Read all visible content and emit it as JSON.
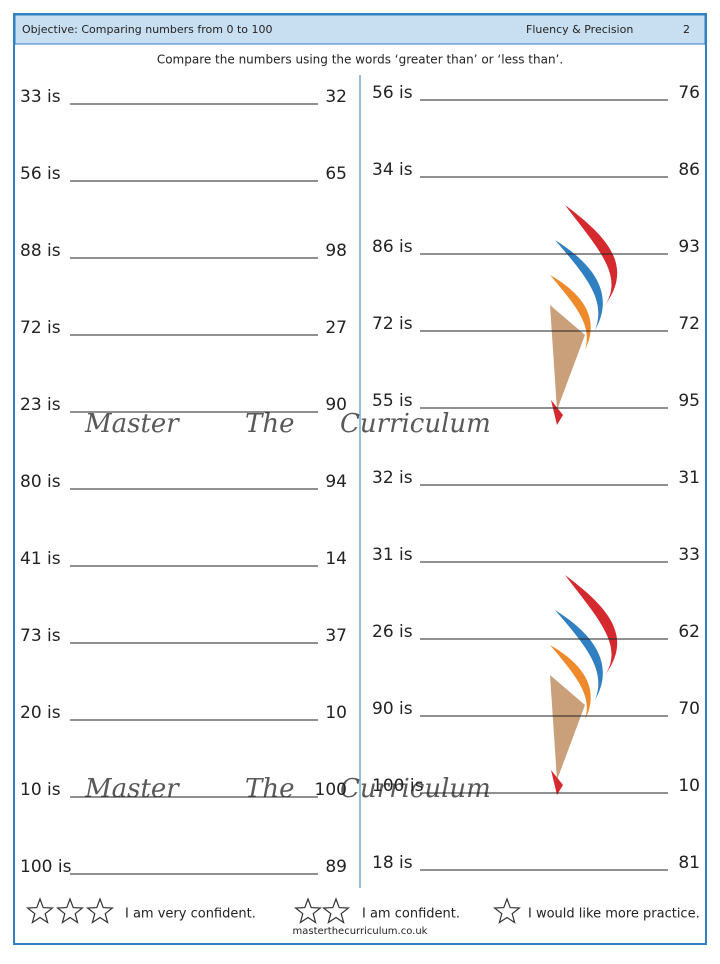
{
  "header": {
    "objective": "Objective: Comparing numbers from 0 to 100",
    "section": "Fluency & Precision",
    "page": "2"
  },
  "instruction": "Compare the numbers using the words ‘greater than’ or ‘less than’.",
  "left_column": [
    {
      "left": "33 is",
      "right": "32"
    },
    {
      "left": "56 is",
      "right": "65"
    },
    {
      "left": "88 is",
      "right": "98"
    },
    {
      "left": "72 is",
      "right": "27"
    },
    {
      "left": "23 is",
      "right": "90"
    },
    {
      "left": "80 is",
      "right": "94"
    },
    {
      "left": "41 is",
      "right": "14"
    },
    {
      "left": "73 is",
      "right": "37"
    },
    {
      "left": "20 is",
      "right": "10"
    },
    {
      "left": "10 is",
      "right": "100"
    },
    {
      "left": "100 is",
      "right": "89"
    }
  ],
  "right_column": [
    {
      "left": "56 is",
      "right": "76"
    },
    {
      "left": "34 is",
      "right": "86"
    },
    {
      "left": "86 is",
      "right": "93"
    },
    {
      "left": "72 is",
      "right": "72"
    },
    {
      "left": "55 is",
      "right": "95"
    },
    {
      "left": "32 is",
      "right": "31"
    },
    {
      "left": "31 is",
      "right": "33"
    },
    {
      "left": "26 is",
      "right": "62"
    },
    {
      "left": "90 is",
      "right": "70"
    },
    {
      "left": "100 is",
      "right": "10"
    },
    {
      "left": "18 is",
      "right": "81"
    }
  ],
  "watermark": [
    "Master",
    "The",
    "Curriculum"
  ],
  "footer": {
    "confidence": [
      "I am very confident.",
      "I am confident.",
      "I would like more practice."
    ],
    "website": "masterthecurriculum.co.uk"
  }
}
